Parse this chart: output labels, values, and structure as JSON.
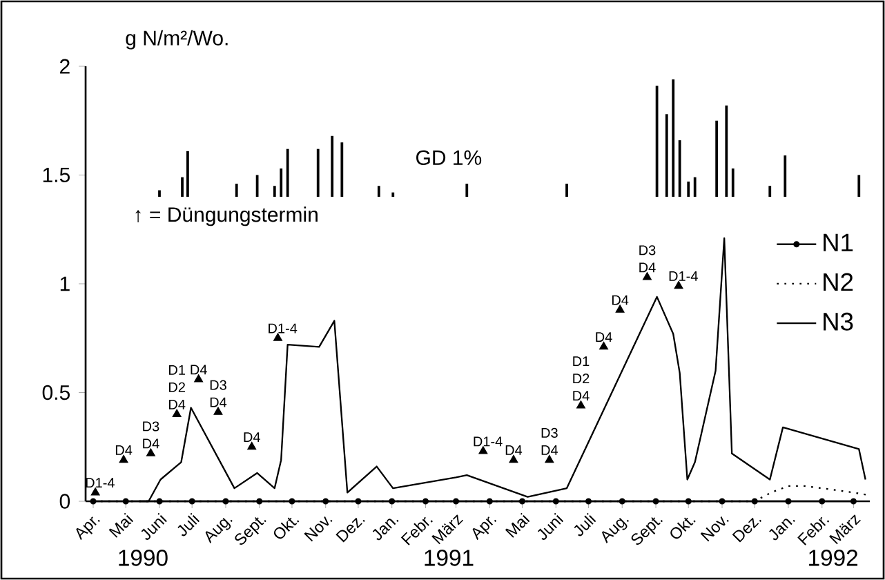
{
  "chart_data": {
    "type": "line",
    "ylabel": "g N/m²/Wo.",
    "xlim": [
      "1990-03-25",
      "1992-03-16"
    ],
    "xticks": [
      {
        "value": "1990-04-01",
        "label": "Apr."
      },
      {
        "value": "1990-05-01",
        "label": "Mai"
      },
      {
        "value": "1990-06-01",
        "label": "Juni"
      },
      {
        "value": "1990-07-01",
        "label": "Juli"
      },
      {
        "value": "1990-08-01",
        "label": "Aug."
      },
      {
        "value": "1990-09-01",
        "label": "Sept."
      },
      {
        "value": "1990-10-01",
        "label": "Okt."
      },
      {
        "value": "1990-11-01",
        "label": "Nov."
      },
      {
        "value": "1990-12-01",
        "label": "Dez."
      },
      {
        "value": "1991-01-01",
        "label": "Jan."
      },
      {
        "value": "1991-02-01",
        "label": "Febr."
      },
      {
        "value": "1991-03-01",
        "label": "März"
      },
      {
        "value": "1991-04-01",
        "label": "Apr."
      },
      {
        "value": "1991-05-01",
        "label": "Mai"
      },
      {
        "value": "1991-06-01",
        "label": "Juni"
      },
      {
        "value": "1991-07-01",
        "label": "Juli"
      },
      {
        "value": "1991-08-01",
        "label": "Aug."
      },
      {
        "value": "1991-09-01",
        "label": "Sept."
      },
      {
        "value": "1991-10-01",
        "label": "Okt."
      },
      {
        "value": "1991-11-01",
        "label": "Nov."
      },
      {
        "value": "1991-12-01",
        "label": "Dez."
      },
      {
        "value": "1992-01-01",
        "label": "Jan."
      },
      {
        "value": "1992-02-01",
        "label": "Febr."
      },
      {
        "value": "1992-03-01",
        "label": "März"
      }
    ],
    "ylim": [
      0,
      2
    ],
    "yticks": [
      0,
      0.5,
      1,
      1.5,
      2
    ],
    "legend": "right",
    "series": [
      {
        "name": "N1",
        "color": "#000000",
        "marker": "circle",
        "line_style": "solid",
        "x": [
          "1990-04-01",
          "1990-05-01",
          "1990-06-01",
          "1990-07-01",
          "1990-08-01",
          "1990-09-01",
          "1990-10-01",
          "1990-11-01",
          "1990-12-01",
          "1991-01-01",
          "1991-02-01",
          "1991-03-01",
          "1991-04-01",
          "1991-05-01",
          "1991-06-01",
          "1991-07-01",
          "1991-08-01",
          "1991-09-01",
          "1991-10-01",
          "1991-11-01",
          "1991-12-01",
          "1992-01-01",
          "1992-02-01",
          "1992-03-01"
        ],
        "values": [
          0,
          0,
          0,
          0,
          0,
          0,
          0,
          0,
          0,
          0,
          0,
          0,
          0,
          0,
          0,
          0,
          0,
          0,
          0,
          0,
          0,
          0,
          0,
          0
        ]
      },
      {
        "name": "N2",
        "color": "#000000",
        "marker": "none",
        "line_style": "dotted",
        "x": [
          "1990-04-01",
          "1990-06-01",
          "1990-08-01",
          "1990-10-01",
          "1990-12-01",
          "1991-02-01",
          "1991-04-01",
          "1991-06-01",
          "1991-08-01",
          "1991-10-01",
          "1991-12-01",
          "1991-12-16",
          "1992-01-01",
          "1992-01-16",
          "1992-02-01",
          "1992-02-16",
          "1992-03-01",
          "1992-03-13"
        ],
        "values": [
          0,
          0,
          0,
          0,
          0,
          0,
          0,
          0,
          0,
          0,
          0,
          0.04,
          0.07,
          0.07,
          0.06,
          0.05,
          0.04,
          0.03
        ]
      },
      {
        "name": "N3",
        "color": "#000000",
        "marker": "none",
        "line_style": "solid",
        "x": [
          "1990-05-14",
          "1990-05-22",
          "1990-06-02",
          "1990-06-21",
          "1990-06-30",
          "1990-08-09",
          "1990-08-30",
          "1990-09-15",
          "1990-09-21",
          "1990-09-27",
          "1990-10-26",
          "1990-11-09",
          "1990-11-21",
          "1990-12-18",
          "1991-01-02",
          "1991-03-01",
          "1991-03-11",
          "1991-05-06",
          "1991-06-11",
          "1991-09-02",
          "1991-09-17",
          "1991-09-23",
          "1991-09-30",
          "1991-10-07",
          "1991-10-26",
          "1991-11-03",
          "1991-11-10",
          "1991-12-15",
          "1991-12-27",
          "1992-03-06",
          "1992-03-12"
        ],
        "values": [
          0,
          0,
          0.1,
          0.18,
          0.43,
          0.06,
          0.13,
          0.06,
          0.19,
          0.72,
          0.71,
          0.83,
          0.04,
          0.16,
          0.06,
          0.11,
          0.12,
          0.02,
          0.06,
          0.94,
          0.77,
          0.59,
          0.1,
          0.18,
          0.6,
          1.21,
          0.22,
          0.1,
          0.34,
          0.24,
          0.1
        ]
      },
      {
        "name": "GD 1%",
        "type": "bar",
        "color": "#000000",
        "x": [
          "1990-06-01",
          "1990-06-22",
          "1990-06-27",
          "1990-08-11",
          "1990-08-30",
          "1990-09-15",
          "1990-09-21",
          "1990-09-27",
          "1990-10-25",
          "1990-11-07",
          "1990-11-16",
          "1990-12-20",
          "1991-01-02",
          "1991-03-11",
          "1991-06-11",
          "1991-09-02",
          "1991-09-11",
          "1991-09-17",
          "1991-09-23",
          "1991-10-01",
          "1991-10-07",
          "1991-10-27",
          "1991-11-05",
          "1991-11-11",
          "1991-12-15",
          "1991-12-29",
          "1992-03-06"
        ],
        "base": [
          1.4,
          1.4,
          1.4,
          1.4,
          1.4,
          1.4,
          1.4,
          1.4,
          1.4,
          1.4,
          1.4,
          1.4,
          1.4,
          1.4,
          1.4,
          1.4,
          1.4,
          1.4,
          1.4,
          1.4,
          1.4,
          1.4,
          1.4,
          1.4,
          1.4,
          1.4,
          1.4
        ],
        "values": [
          0.03,
          0.09,
          0.21,
          0.06,
          0.1,
          0.05,
          0.13,
          0.22,
          0.22,
          0.28,
          0.25,
          0.05,
          0.02,
          0.06,
          0.06,
          0.51,
          0.38,
          0.54,
          0.26,
          0.07,
          0.09,
          0.35,
          0.42,
          0.13,
          0.05,
          0.19,
          0.1
        ]
      },
      {
        "type": "scatter",
        "color": "#000000",
        "marker": "triangle",
        "x": [
          "1990-04-03",
          "1990-04-29",
          "1990-05-24",
          "1990-06-17",
          "1990-07-07",
          "1990-07-25",
          "1990-08-25",
          "1990-09-18",
          "1991-03-26",
          "1991-04-23",
          "1991-05-26",
          "1991-06-24",
          "1991-07-15",
          "1991-07-30",
          "1991-08-24",
          "1991-09-22"
        ],
        "values": [
          0.04,
          0.19,
          0.22,
          0.4,
          0.56,
          0.41,
          0.25,
          0.75,
          0.23,
          0.19,
          0.19,
          0.44,
          0.71,
          0.88,
          1.03,
          0.99
        ],
        "value_labels": [
          "D1-4",
          "D4",
          "D3 D4",
          "D1 D2 D4",
          "D4",
          "D3 D4",
          "D4",
          "D1-4",
          "D1-4",
          "D4",
          "D3 D4",
          "D1 D2 D4",
          "D4",
          "D4",
          "D3 D4",
          "D1-4"
        ]
      }
    ],
    "annotations": [
      "↑ = Düngungstermin",
      "1990",
      "1991",
      "1992"
    ]
  }
}
